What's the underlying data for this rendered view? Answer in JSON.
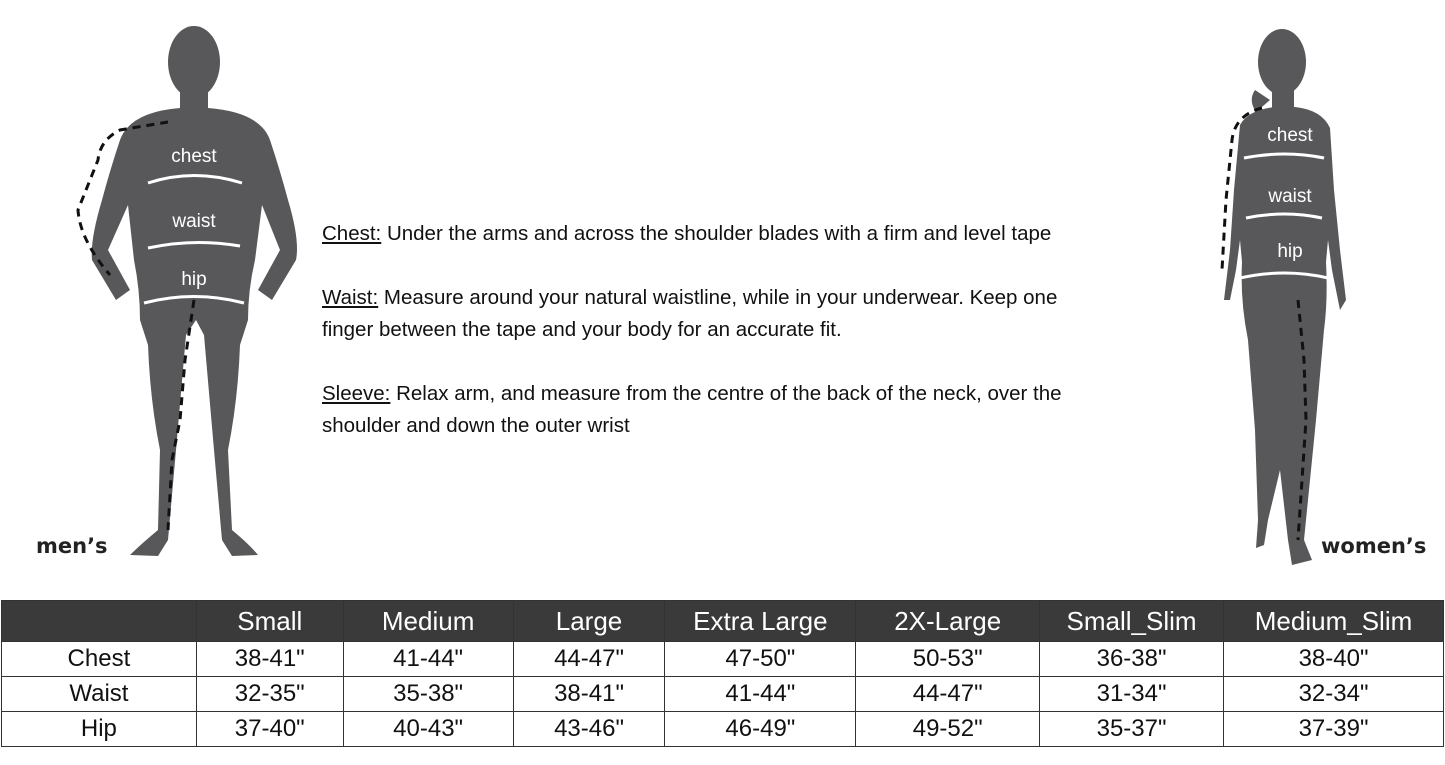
{
  "figures": {
    "men_label": "men’s",
    "women_label": "women’s",
    "body_labels": {
      "chest": "chest",
      "waist": "waist",
      "hip": "hip"
    },
    "silhouette_color": "#58585a"
  },
  "instructions": [
    {
      "term": "Chest:",
      "text": " Under the arms and across the shoulder blades with a firm and level tape"
    },
    {
      "term": "Waist:",
      "text": " Measure around your natural waistline, while in your underwear. Keep one",
      "text2": "finger between the tape and your body for an accurate fit."
    },
    {
      "term": "Sleeve:",
      "text": " Relax arm, and measure from the centre of the back of the neck, over the",
      "text2": "shoulder and down the outer wrist"
    }
  ],
  "size_table": {
    "header_color": "#3a3a3a",
    "columns": [
      "",
      "Small",
      "Medium",
      "Large",
      "Extra Large",
      "2X-Large",
      "Small_Slim",
      "Medium_Slim"
    ],
    "rows": [
      {
        "label": "Chest",
        "values": [
          "38-41\"",
          "41-44\"",
          "44-47\"",
          "47-50\"",
          "50-53\"",
          "36-38\"",
          "38-40\""
        ]
      },
      {
        "label": "Waist",
        "values": [
          "32-35\"",
          "35-38\"",
          "38-41\"",
          "41-44\"",
          "44-47\"",
          "31-34\"",
          "32-34\""
        ]
      },
      {
        "label": "Hip",
        "values": [
          "37-40\"",
          "40-43\"",
          "43-46\"",
          "46-49\"",
          "49-52\"",
          "35-37\"",
          "37-39\""
        ]
      }
    ]
  }
}
